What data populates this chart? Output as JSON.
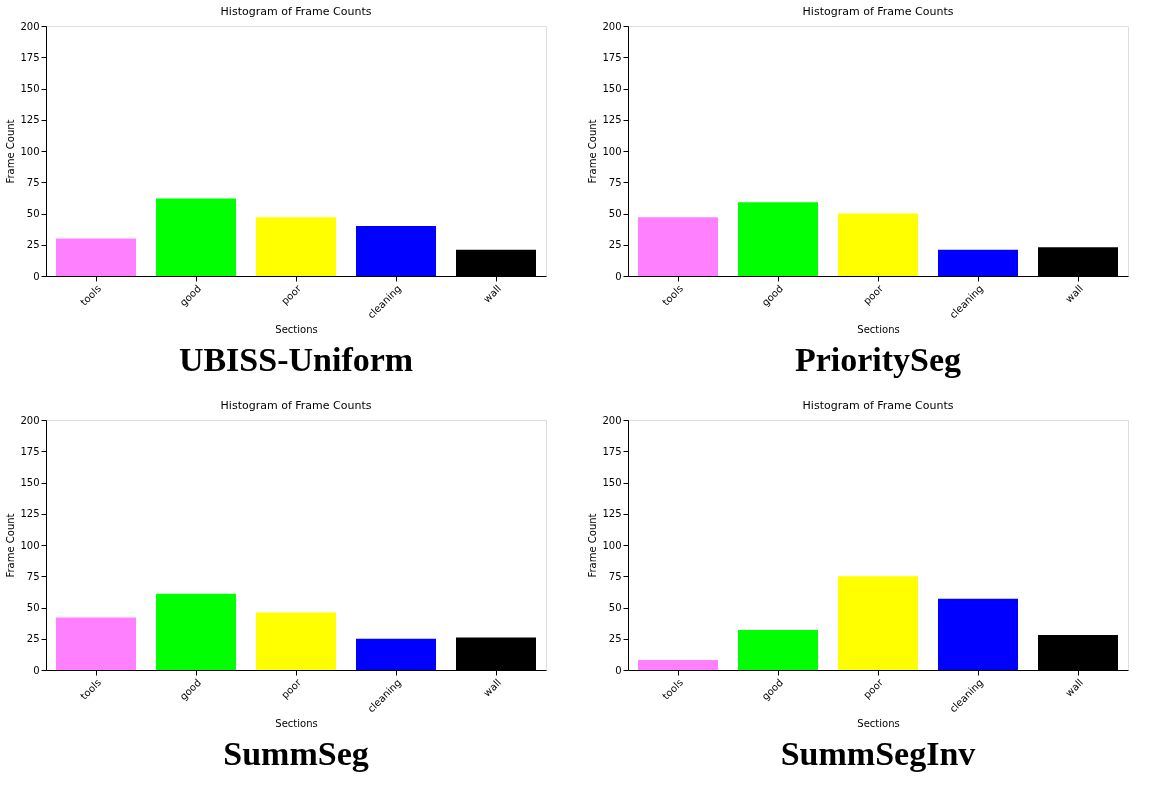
{
  "chart_data": [
    {
      "type": "bar",
      "title": "Histogram of Frame Counts",
      "xlabel": "Sections",
      "ylabel": "Frame Count",
      "categories": [
        "tools",
        "good",
        "poor",
        "cleaning",
        "wall"
      ],
      "values": [
        30,
        62,
        47,
        40,
        21
      ],
      "colors": [
        "#ff80ff",
        "#00ff00",
        "#ffff00",
        "#0000ff",
        "#000000"
      ],
      "ylim": [
        0,
        200
      ],
      "yticks": [
        0,
        25,
        50,
        75,
        100,
        125,
        150,
        175,
        200
      ],
      "grid": false,
      "annotations": [
        "UBISS-Uniform"
      ]
    },
    {
      "type": "bar",
      "title": "Histogram of Frame Counts",
      "xlabel": "Sections",
      "ylabel": "Frame Count",
      "categories": [
        "tools",
        "good",
        "poor",
        "cleaning",
        "wall"
      ],
      "values": [
        47,
        59,
        50,
        21,
        23
      ],
      "colors": [
        "#ff80ff",
        "#00ff00",
        "#ffff00",
        "#0000ff",
        "#000000"
      ],
      "ylim": [
        0,
        200
      ],
      "yticks": [
        0,
        25,
        50,
        75,
        100,
        125,
        150,
        175,
        200
      ],
      "grid": false,
      "annotations": [
        "PrioritySeg"
      ]
    },
    {
      "type": "bar",
      "title": "Histogram of Frame Counts",
      "xlabel": "Sections",
      "ylabel": "Frame Count",
      "categories": [
        "tools",
        "good",
        "poor",
        "cleaning",
        "wall"
      ],
      "values": [
        42,
        61,
        46,
        25,
        26
      ],
      "colors": [
        "#ff80ff",
        "#00ff00",
        "#ffff00",
        "#0000ff",
        "#000000"
      ],
      "ylim": [
        0,
        200
      ],
      "yticks": [
        0,
        25,
        50,
        75,
        100,
        125,
        150,
        175,
        200
      ],
      "grid": false,
      "annotations": [
        "SummSeg"
      ]
    },
    {
      "type": "bar",
      "title": "Histogram of Frame Counts",
      "xlabel": "Sections",
      "ylabel": "Frame Count",
      "categories": [
        "tools",
        "good",
        "poor",
        "cleaning",
        "wall"
      ],
      "values": [
        8,
        32,
        75,
        57,
        28
      ],
      "colors": [
        "#ff80ff",
        "#00ff00",
        "#ffff00",
        "#0000ff",
        "#000000"
      ],
      "ylim": [
        0,
        200
      ],
      "yticks": [
        0,
        25,
        50,
        75,
        100,
        125,
        150,
        175,
        200
      ],
      "grid": false,
      "annotations": [
        "SummSegInv"
      ]
    }
  ]
}
